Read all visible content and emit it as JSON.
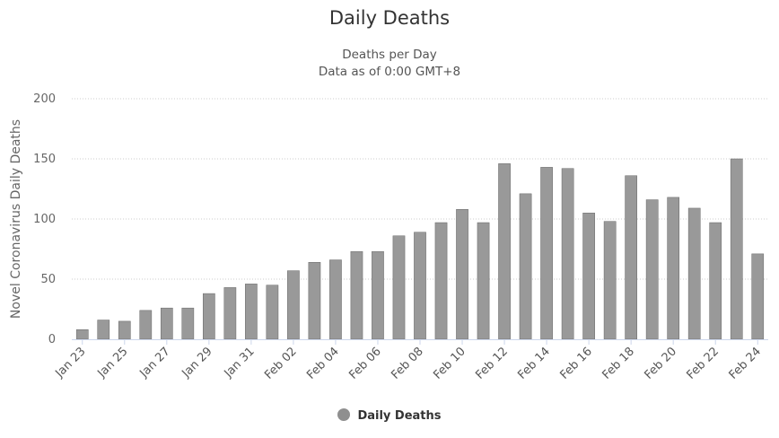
{
  "title": "Daily Deaths",
  "subtitle_line1": "Deaths per Day",
  "subtitle_line2": "Data as of 0:00 GMT+8",
  "legend_label": "Daily Deaths",
  "colors": {
    "bar": "#999999",
    "bar_stroke": "#666666",
    "grid": "#cccccc",
    "axis": "#ccd6eb"
  },
  "chart_data": {
    "type": "bar",
    "title": "Daily Deaths",
    "subtitle": "Deaths per Day / Data as of 0:00 GMT+8",
    "ylabel": "Novel Coronavirus Daily Deaths",
    "xlabel": "",
    "ylim": [
      0,
      200
    ],
    "yticks": [
      0,
      50,
      100,
      150,
      200
    ],
    "grid": true,
    "legend": "bottom-center",
    "categories": [
      "Jan 23",
      "Jan 24",
      "Jan 25",
      "Jan 26",
      "Jan 27",
      "Jan 28",
      "Jan 29",
      "Jan 30",
      "Jan 31",
      "Feb 01",
      "Feb 02",
      "Feb 03",
      "Feb 04",
      "Feb 05",
      "Feb 06",
      "Feb 07",
      "Feb 08",
      "Feb 09",
      "Feb 10",
      "Feb 11",
      "Feb 12",
      "Feb 13",
      "Feb 14",
      "Feb 15",
      "Feb 16",
      "Feb 17",
      "Feb 18",
      "Feb 19",
      "Feb 20",
      "Feb 21",
      "Feb 22",
      "Feb 23",
      "Feb 24"
    ],
    "tick_labels": [
      "Jan 23",
      "Jan 25",
      "Jan 27",
      "Jan 29",
      "Jan 31",
      "Feb 02",
      "Feb 04",
      "Feb 06",
      "Feb 08",
      "Feb 10",
      "Feb 12",
      "Feb 14",
      "Feb 16",
      "Feb 18",
      "Feb 20",
      "Feb 22",
      "Feb 24"
    ],
    "series": [
      {
        "name": "Daily Deaths",
        "values": [
          8,
          16,
          15,
          24,
          26,
          26,
          38,
          43,
          46,
          45,
          57,
          64,
          66,
          73,
          73,
          86,
          89,
          97,
          108,
          97,
          146,
          121,
          143,
          142,
          105,
          98,
          136,
          116,
          118,
          109,
          97,
          150,
          71
        ]
      }
    ]
  }
}
